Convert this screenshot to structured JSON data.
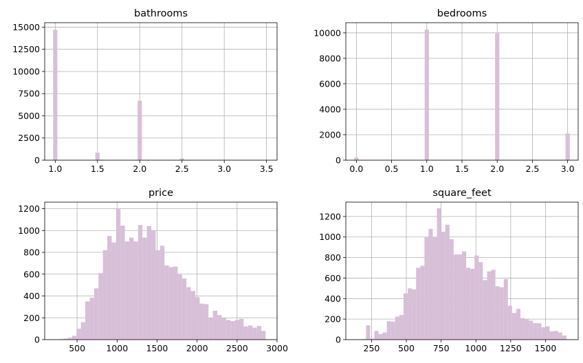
{
  "chart_data": [
    {
      "type": "bar",
      "title": "bathrooms",
      "xlim": [
        0.875,
        3.625
      ],
      "ylim": [
        0,
        15500
      ],
      "xticks": [
        1.0,
        1.5,
        2.0,
        2.5,
        3.0,
        3.5
      ],
      "xtick_labels": [
        "1.0",
        "1.5",
        "2.0",
        "2.5",
        "3.0",
        "3.5"
      ],
      "yticks": [
        0,
        2500,
        5000,
        7500,
        10000,
        12500,
        15000
      ],
      "ytick_labels": [
        "0",
        "2500",
        "5000",
        "7500",
        "10000",
        "12500",
        "15000"
      ],
      "grid": true,
      "color": "#d8bfd8",
      "bin_width": 0.05,
      "bins": [
        {
          "x": 1.0,
          "y": 14700
        },
        {
          "x": 1.5,
          "y": 850
        },
        {
          "x": 2.0,
          "y": 6700
        },
        {
          "x": 2.5,
          "y": 200
        }
      ]
    },
    {
      "type": "bar",
      "title": "bedrooms",
      "xlim": [
        -0.15,
        3.15
      ],
      "ylim": [
        0,
        10800
      ],
      "xticks": [
        0.0,
        0.5,
        1.0,
        1.5,
        2.0,
        2.5,
        3.0
      ],
      "xtick_labels": [
        "0.0",
        "0.5",
        "1.0",
        "1.5",
        "2.0",
        "2.5",
        "3.0"
      ],
      "yticks": [
        0,
        2000,
        4000,
        6000,
        8000,
        10000
      ],
      "ytick_labels": [
        "0",
        "2000",
        "4000",
        "6000",
        "8000",
        "10000"
      ],
      "grid": true,
      "color": "#d8bfd8",
      "bin_width": 0.06,
      "bins": [
        {
          "x": 0.0,
          "y": 200
        },
        {
          "x": 1.0,
          "y": 10250
        },
        {
          "x": 2.0,
          "y": 9950
        },
        {
          "x": 3.0,
          "y": 2100
        }
      ]
    },
    {
      "type": "bar",
      "title": "price",
      "xlim": [
        95,
        3000
      ],
      "ylim": [
        0,
        1260
      ],
      "xticks": [
        500,
        1000,
        1500,
        2000,
        2500,
        3000
      ],
      "xtick_labels": [
        "500",
        "1000",
        "1500",
        "2000",
        "2500",
        "3000"
      ],
      "yticks": [
        0,
        200,
        400,
        600,
        800,
        1000,
        1200
      ],
      "ytick_labels": [
        "0",
        "200",
        "400",
        "600",
        "800",
        "1000",
        "1200"
      ],
      "grid": true,
      "color": "#d8bfd8",
      "bin_width": 55,
      "bins": [
        {
          "x": 190,
          "y": 2
        },
        {
          "x": 245,
          "y": 3
        },
        {
          "x": 300,
          "y": 5
        },
        {
          "x": 355,
          "y": 10
        },
        {
          "x": 410,
          "y": 18
        },
        {
          "x": 465,
          "y": 35
        },
        {
          "x": 520,
          "y": 100
        },
        {
          "x": 575,
          "y": 160
        },
        {
          "x": 630,
          "y": 350
        },
        {
          "x": 685,
          "y": 385
        },
        {
          "x": 740,
          "y": 470
        },
        {
          "x": 795,
          "y": 610
        },
        {
          "x": 850,
          "y": 820
        },
        {
          "x": 905,
          "y": 950
        },
        {
          "x": 960,
          "y": 890
        },
        {
          "x": 1015,
          "y": 1200
        },
        {
          "x": 1070,
          "y": 1045
        },
        {
          "x": 1125,
          "y": 900
        },
        {
          "x": 1180,
          "y": 935
        },
        {
          "x": 1235,
          "y": 900
        },
        {
          "x": 1290,
          "y": 1050
        },
        {
          "x": 1345,
          "y": 935
        },
        {
          "x": 1400,
          "y": 1040
        },
        {
          "x": 1455,
          "y": 1000
        },
        {
          "x": 1510,
          "y": 820
        },
        {
          "x": 1565,
          "y": 860
        },
        {
          "x": 1620,
          "y": 680
        },
        {
          "x": 1675,
          "y": 665
        },
        {
          "x": 1730,
          "y": 670
        },
        {
          "x": 1785,
          "y": 600
        },
        {
          "x": 1840,
          "y": 560
        },
        {
          "x": 1895,
          "y": 480
        },
        {
          "x": 1950,
          "y": 445
        },
        {
          "x": 2005,
          "y": 390
        },
        {
          "x": 2060,
          "y": 330
        },
        {
          "x": 2115,
          "y": 325
        },
        {
          "x": 2170,
          "y": 200
        },
        {
          "x": 2225,
          "y": 265
        },
        {
          "x": 2280,
          "y": 225
        },
        {
          "x": 2335,
          "y": 200
        },
        {
          "x": 2390,
          "y": 180
        },
        {
          "x": 2445,
          "y": 170
        },
        {
          "x": 2500,
          "y": 180
        },
        {
          "x": 2555,
          "y": 190
        },
        {
          "x": 2610,
          "y": 120
        },
        {
          "x": 2665,
          "y": 130
        },
        {
          "x": 2720,
          "y": 110
        },
        {
          "x": 2775,
          "y": 125
        },
        {
          "x": 2830,
          "y": 80
        },
        {
          "x": 2885,
          "y": 0
        },
        {
          "x": 2940,
          "y": 0
        }
      ]
    },
    {
      "type": "bar",
      "title": "square_feet",
      "xlim": [
        65,
        1735
      ],
      "ylim": [
        0,
        1340
      ],
      "xticks": [
        250,
        500,
        750,
        1000,
        1250,
        1500
      ],
      "xtick_labels": [
        "250",
        "500",
        "750",
        "1000",
        "1250",
        "1500"
      ],
      "yticks": [
        0,
        200,
        400,
        600,
        800,
        1000,
        1200
      ],
      "ytick_labels": [
        "0",
        "200",
        "400",
        "600",
        "800",
        "1000",
        "1200"
      ],
      "grid": true,
      "color": "#d8bfd8",
      "bin_width": 30,
      "bins": [
        {
          "x": 195,
          "y": 5
        },
        {
          "x": 225,
          "y": 140
        },
        {
          "x": 255,
          "y": 10
        },
        {
          "x": 285,
          "y": 85
        },
        {
          "x": 315,
          "y": 55
        },
        {
          "x": 345,
          "y": 70
        },
        {
          "x": 375,
          "y": 180
        },
        {
          "x": 405,
          "y": 175
        },
        {
          "x": 435,
          "y": 225
        },
        {
          "x": 465,
          "y": 240
        },
        {
          "x": 495,
          "y": 450
        },
        {
          "x": 525,
          "y": 500
        },
        {
          "x": 555,
          "y": 490
        },
        {
          "x": 585,
          "y": 700
        },
        {
          "x": 615,
          "y": 720
        },
        {
          "x": 645,
          "y": 1000
        },
        {
          "x": 675,
          "y": 1080
        },
        {
          "x": 705,
          "y": 1000
        },
        {
          "x": 735,
          "y": 1280
        },
        {
          "x": 765,
          "y": 1050
        },
        {
          "x": 795,
          "y": 1120
        },
        {
          "x": 825,
          "y": 980
        },
        {
          "x": 855,
          "y": 830
        },
        {
          "x": 885,
          "y": 830
        },
        {
          "x": 915,
          "y": 860
        },
        {
          "x": 945,
          "y": 700
        },
        {
          "x": 975,
          "y": 690
        },
        {
          "x": 1005,
          "y": 820
        },
        {
          "x": 1035,
          "y": 755
        },
        {
          "x": 1065,
          "y": 580
        },
        {
          "x": 1095,
          "y": 665
        },
        {
          "x": 1125,
          "y": 680
        },
        {
          "x": 1155,
          "y": 520
        },
        {
          "x": 1185,
          "y": 510
        },
        {
          "x": 1215,
          "y": 590
        },
        {
          "x": 1245,
          "y": 330
        },
        {
          "x": 1275,
          "y": 260
        },
        {
          "x": 1305,
          "y": 300
        },
        {
          "x": 1335,
          "y": 210
        },
        {
          "x": 1365,
          "y": 200
        },
        {
          "x": 1395,
          "y": 185
        },
        {
          "x": 1425,
          "y": 160
        },
        {
          "x": 1455,
          "y": 160
        },
        {
          "x": 1485,
          "y": 120
        },
        {
          "x": 1515,
          "y": 130
        },
        {
          "x": 1545,
          "y": 80
        },
        {
          "x": 1575,
          "y": 85
        },
        {
          "x": 1605,
          "y": 70
        },
        {
          "x": 1635,
          "y": 40
        }
      ]
    }
  ]
}
